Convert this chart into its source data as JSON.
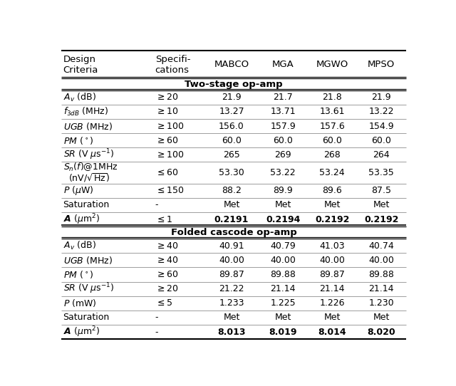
{
  "headers": [
    "Design\nCriteria",
    "Specifi-\ncations",
    "MABCO",
    "MGA",
    "MGWO",
    "MPSO"
  ],
  "section1_title": "Two-stage op-amp",
  "section2_title": "Folded cascode op-amp",
  "section1_rows": [
    [
      "$A_v$ (dB)",
      "$\\geq$20",
      "21.9",
      "21.7",
      "21.8",
      "21.9"
    ],
    [
      "$f_{3dB}$ (MHz)",
      "$\\geq$10",
      "13.27",
      "13.71",
      "13.61",
      "13.22"
    ],
    [
      "$UGB$ (MHz)",
      "$\\geq$100",
      "156.0",
      "157.9",
      "157.6",
      "154.9"
    ],
    [
      "$PM$ ($^\\circ$)",
      "$\\geq$60",
      "60.0",
      "60.0",
      "60.0",
      "60.0"
    ],
    [
      "$SR$ (V $\\mu$s$^{-1}$)",
      "$\\geq$100",
      "265",
      "269",
      "268",
      "264"
    ],
    [
      "$S_n(f)$@1MHz",
      "$\\leq$60",
      "53.30",
      "53.22",
      "53.24",
      "53.35"
    ],
    [
      "$P$ ($\\mu$W)",
      "$\\leq$150",
      "88.2",
      "89.9",
      "89.6",
      "87.5"
    ],
    [
      "Saturation",
      "-",
      "Met",
      "Met",
      "Met",
      "Met"
    ],
    [
      "$A$ ($\\mu$m$^2$)",
      "$\\leq$1",
      "0.2191",
      "0.2194",
      "0.2192",
      "0.2192"
    ]
  ],
  "section2_rows": [
    [
      "$A_v$ (dB)",
      "$\\geq$40",
      "40.91",
      "40.79",
      "41.03",
      "40.74"
    ],
    [
      "$UGB$ (MHz)",
      "$\\geq$40",
      "40.00",
      "40.00",
      "40.00",
      "40.00"
    ],
    [
      "$PM$ ($^\\circ$)",
      "$\\geq$60",
      "89.87",
      "89.88",
      "89.87",
      "89.88"
    ],
    [
      "$SR$ (V $\\mu$s$^{-1}$)",
      "$\\geq$20",
      "21.22",
      "21.14",
      "21.14",
      "21.14"
    ],
    [
      "$P$ (mW)",
      "$\\leq$5",
      "1.233",
      "1.225",
      "1.226",
      "1.230"
    ],
    [
      "Saturation",
      "-",
      "Met",
      "Met",
      "Met",
      "Met"
    ],
    [
      "$A$ ($\\mu$m$^2$)",
      "-",
      "8.013",
      "8.019",
      "8.014",
      "8.020"
    ]
  ],
  "font_size": 9.0,
  "header_font_size": 9.5,
  "section_font_size": 9.5,
  "background_color": "#ffffff"
}
